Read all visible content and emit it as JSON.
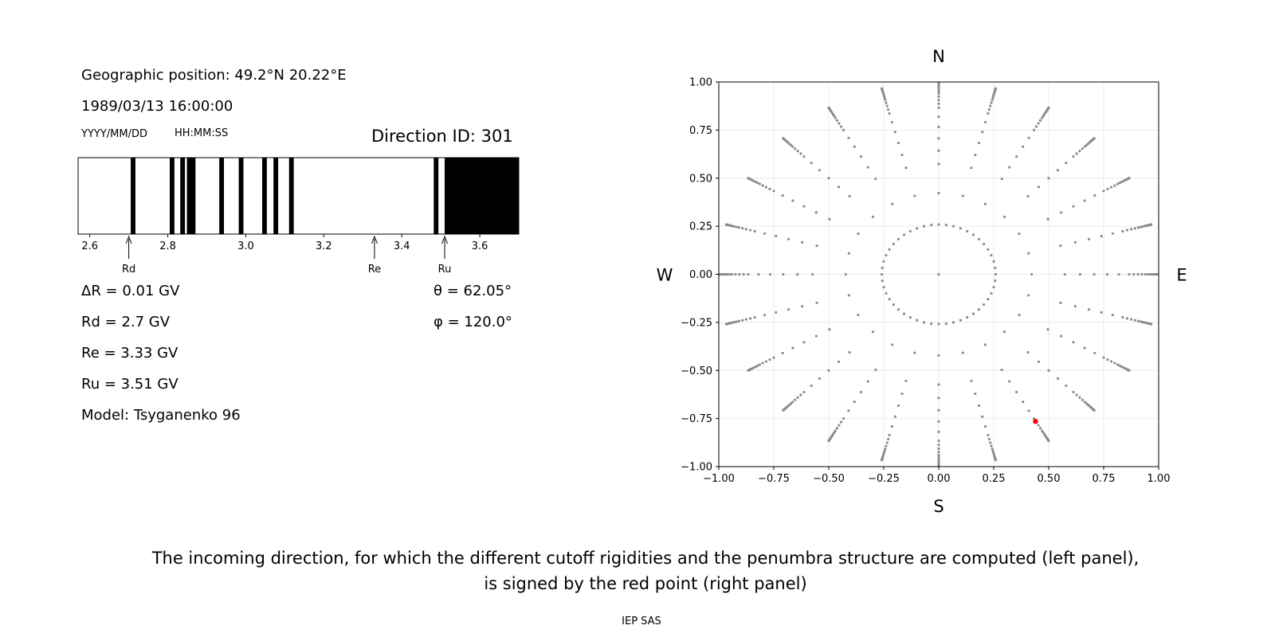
{
  "left_panel": {
    "geo_position": "Geographic position: 49.2°N 20.22°E",
    "datetime": "1989/03/13 16:00:00",
    "date_format": "YYYY/MM/DD",
    "time_format": "HH:MM:SS",
    "direction_id": "Direction ID: 301",
    "markers": [
      {
        "label": "Rd",
        "value": 2.7
      },
      {
        "label": "Re",
        "value": 3.33
      },
      {
        "label": "Ru",
        "value": 3.51
      }
    ],
    "delta_r": "ΔR = 0.01 GV",
    "rd": "Rd = 2.7 GV",
    "re": "Re = 3.33 GV",
    "ru": "Ru = 3.51 GV",
    "model": "Model: Tsyganenko 96",
    "theta": "θ = 62.05°",
    "phi": "φ = 120.0°"
  },
  "right_panel": {
    "compass": {
      "north": "N",
      "south": "S",
      "west": "W",
      "east": "E"
    }
  },
  "caption": {
    "line1": "The incoming direction, for which the different cutoff rigidities and the penumbra structure are computed (left panel),",
    "line2": "is signed by the red point (right panel)"
  },
  "footer": "IEP SAS",
  "colors": {
    "grid_point": "#8c8c8c",
    "highlight_point": "#ff0000",
    "forbidden": "#000000",
    "allowed": "#ffffff"
  },
  "chart_data": [
    {
      "type": "bar",
      "title": "",
      "xlim": [
        2.57,
        3.7
      ],
      "xticks": [
        2.6,
        2.8,
        3.0,
        3.2,
        3.4,
        3.6
      ],
      "forbidden_bands": [
        [
          2.705,
          2.717
        ],
        [
          2.805,
          2.817
        ],
        [
          2.832,
          2.844
        ],
        [
          2.849,
          2.871
        ],
        [
          2.932,
          2.944
        ],
        [
          2.982,
          2.994
        ],
        [
          3.042,
          3.054
        ],
        [
          3.071,
          3.083
        ],
        [
          3.111,
          3.123
        ],
        [
          3.482,
          3.494
        ],
        [
          3.51,
          3.7
        ]
      ]
    },
    {
      "type": "scatter",
      "xlim": [
        -1.0,
        1.0
      ],
      "ylim": [
        -1.0,
        1.0
      ],
      "xticks": [
        -1.0,
        -0.75,
        -0.5,
        -0.25,
        0.0,
        0.25,
        0.5,
        0.75,
        1.0
      ],
      "yticks": [
        -1.0,
        -0.75,
        -0.5,
        -0.25,
        0.0,
        0.25,
        0.5,
        0.75,
        1.0
      ],
      "grid": true,
      "series": [
        {
          "description_points": "grid",
          "rings_theta_deg": [
            0,
            15,
            25,
            35,
            40,
            45,
            50,
            55,
            60,
            62.5,
            65,
            67.5,
            70,
            72,
            74,
            76,
            78,
            80,
            82,
            84,
            86,
            88,
            90
          ],
          "phi_step_deg": 15
        },
        {
          "highlight": {
            "x": 0.44,
            "y": -0.765
          }
        }
      ]
    }
  ]
}
